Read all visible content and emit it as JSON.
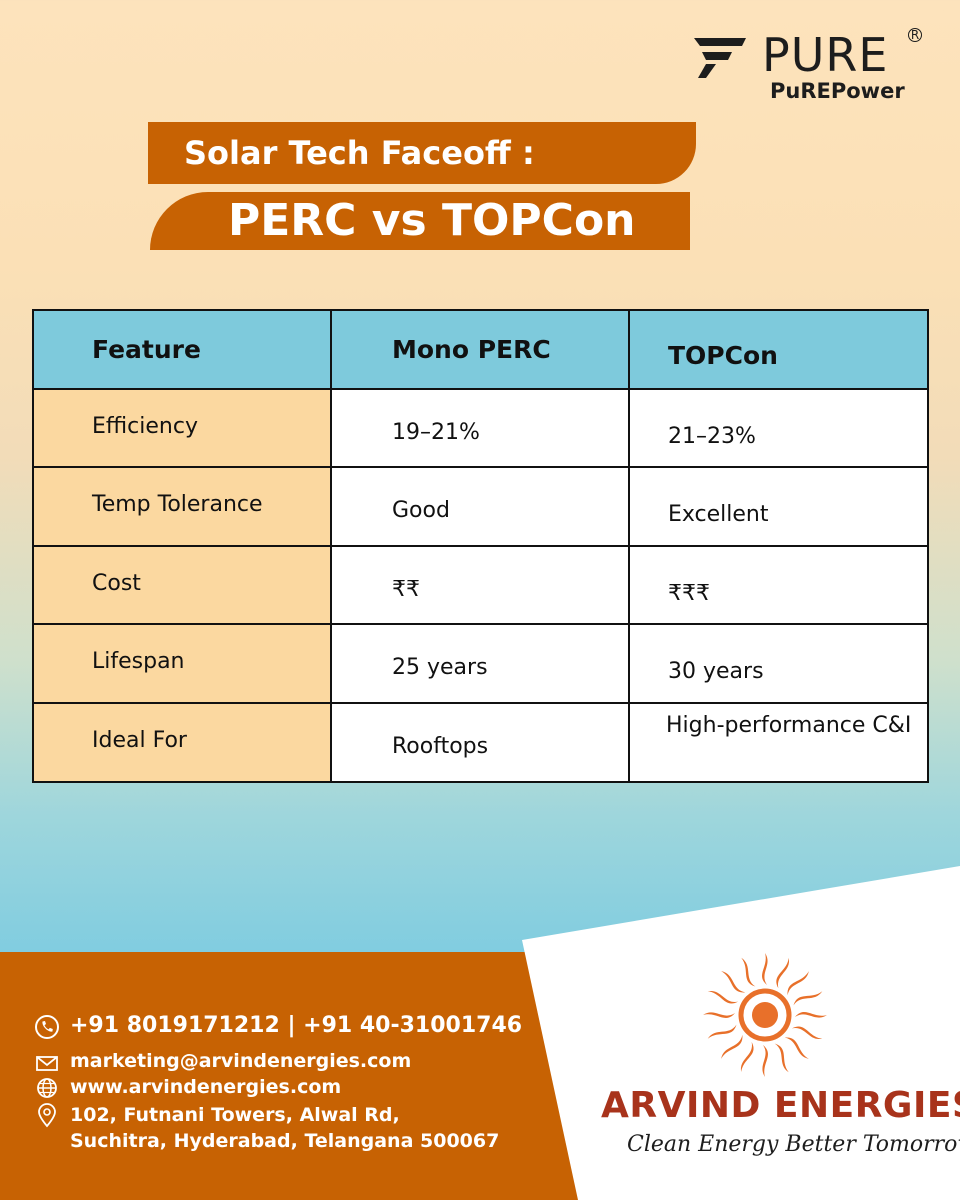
{
  "brand": {
    "name": "PURE",
    "sub": "PuREPower"
  },
  "title": {
    "line1": "Solar Tech Faceoff :",
    "line2": "PERC vs TOPCon"
  },
  "table": {
    "headers": [
      "Feature",
      "Mono PERC",
      "TOPCon"
    ],
    "rows": [
      [
        "Efficiency",
        "19–21%",
        "21–23%"
      ],
      [
        "Temp Tolerance",
        "Good",
        "Excellent"
      ],
      [
        "Cost",
        "₹₹",
        "₹₹₹"
      ],
      [
        "Lifespan",
        "25 years",
        "30 years"
      ],
      [
        "Ideal For",
        "Rooftops",
        "High-performance C&I"
      ]
    ]
  },
  "contact": {
    "phone": "+91 8019171212 | +91 40-31001746",
    "email": "marketing@arvindenergies.com",
    "website": "www.arvindenergies.com",
    "address_line1": "102, Futnani Towers, Alwal Rd,",
    "address_line2": "Suchitra, Hyderabad, Telangana 500067"
  },
  "company": {
    "name": "ARVIND ENERGIES",
    "tagline": "Clean Energy Better Tomorrow"
  },
  "colors": {
    "accent_orange": "#c76203",
    "header_blue": "#7ecadc",
    "feature_cell": "#fbd8a0",
    "company_red": "#a8331b"
  },
  "icons": [
    "brand-logo-icon",
    "phone-icon",
    "mail-icon",
    "globe-icon",
    "location-pin-icon",
    "sun-logo-icon"
  ]
}
